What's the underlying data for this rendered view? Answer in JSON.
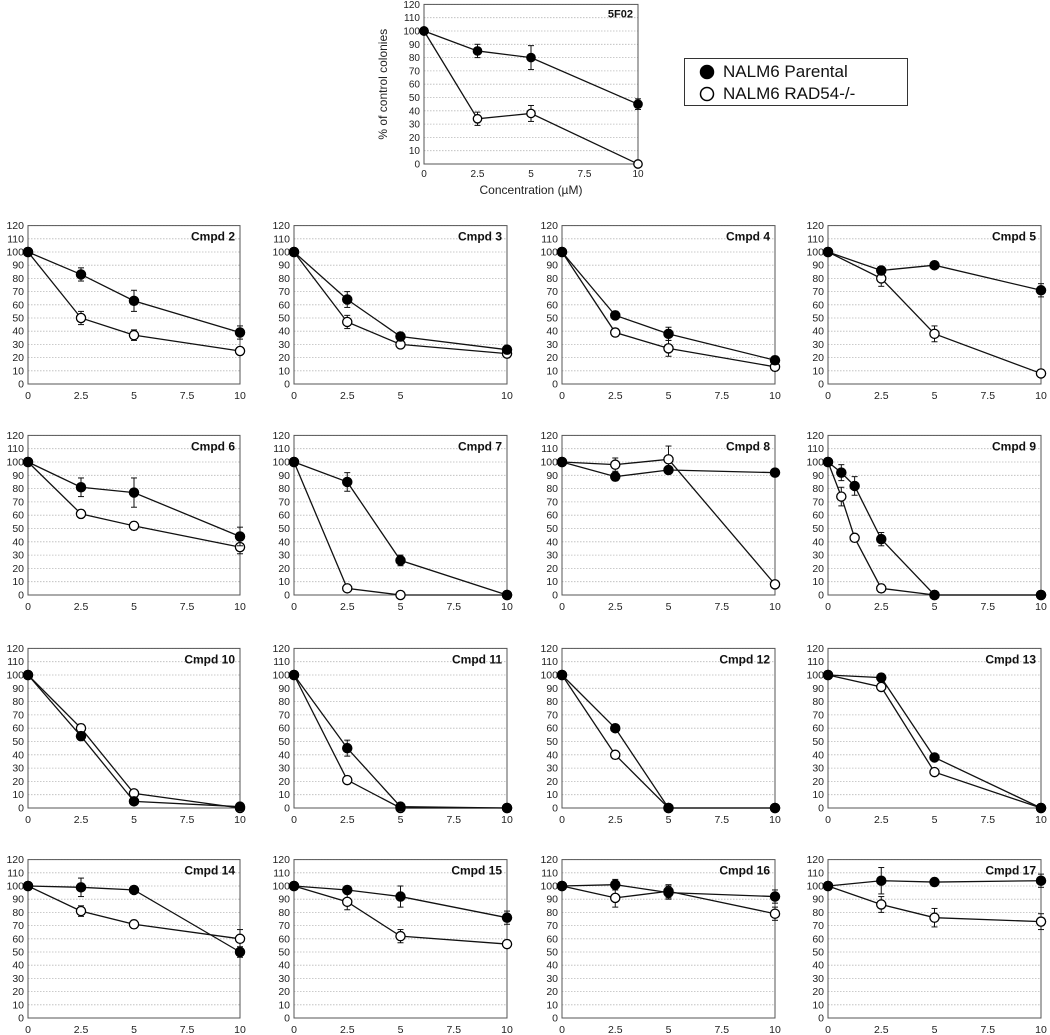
{
  "legend": {
    "parental": "NALM6 Parental",
    "rad54": "NALM6 RAD54-/-"
  },
  "chart_data": [
    {
      "type": "line",
      "title": "5F02",
      "xlabel": "Concentration (µM)",
      "ylabel": "% of control colonies",
      "xlim": [
        0,
        10
      ],
      "ylim": [
        0,
        120
      ],
      "xticks": [
        0,
        2.5,
        5,
        7.5,
        10
      ],
      "xticklabels": [
        "0",
        "2.5",
        "5",
        "7.5",
        "10"
      ],
      "yticks": [
        0,
        10,
        20,
        30,
        40,
        50,
        60,
        70,
        80,
        90,
        100,
        110,
        120
      ],
      "grid": true,
      "series": [
        {
          "name": "NALM6 Parental",
          "x": [
            0,
            2.5,
            5,
            10
          ],
          "y": [
            100,
            85,
            80,
            45
          ],
          "err": [
            0,
            5,
            9,
            4
          ]
        },
        {
          "name": "NALM6 RAD54-/-",
          "x": [
            0,
            2.5,
            5,
            10
          ],
          "y": [
            100,
            34,
            38,
            0
          ],
          "err": [
            0,
            5,
            6,
            0
          ]
        }
      ]
    },
    {
      "type": "line",
      "title": "Cmpd 2",
      "xticklabels": [
        "0",
        "2.5",
        "5",
        "7.5",
        "10"
      ],
      "series": [
        {
          "name": "NALM6 Parental",
          "x": [
            0,
            2.5,
            5,
            10
          ],
          "y": [
            100,
            83,
            63,
            39
          ],
          "err": [
            0,
            5,
            8,
            5
          ]
        },
        {
          "name": "NALM6 RAD54-/-",
          "x": [
            0,
            2.5,
            5,
            10
          ],
          "y": [
            100,
            50,
            37,
            25
          ],
          "err": [
            0,
            5,
            4,
            3
          ]
        }
      ]
    },
    {
      "type": "line",
      "title": "Cmpd 3",
      "xticklabels": [
        "0",
        "2.5",
        "5",
        "",
        "10"
      ],
      "series": [
        {
          "name": "NALM6 Parental",
          "x": [
            0,
            2.5,
            5,
            10
          ],
          "y": [
            100,
            64,
            36,
            26
          ],
          "err": [
            0,
            6,
            3,
            2
          ]
        },
        {
          "name": "NALM6 RAD54-/-",
          "x": [
            0,
            2.5,
            5,
            10
          ],
          "y": [
            100,
            47,
            30,
            23
          ],
          "err": [
            0,
            5,
            3,
            2
          ]
        }
      ]
    },
    {
      "type": "line",
      "title": "Cmpd 4",
      "xticklabels": [
        "0",
        "2.5",
        "5",
        "7.5",
        "10"
      ],
      "series": [
        {
          "name": "NALM6 Parental",
          "x": [
            0,
            2.5,
            5,
            10
          ],
          "y": [
            100,
            52,
            38,
            18
          ],
          "err": [
            0,
            3,
            5,
            3
          ]
        },
        {
          "name": "NALM6 RAD54-/-",
          "x": [
            0,
            2.5,
            5,
            10
          ],
          "y": [
            100,
            39,
            27,
            13
          ],
          "err": [
            0,
            3,
            6,
            3
          ]
        }
      ]
    },
    {
      "type": "line",
      "title": "Cmpd 5",
      "xticklabels": [
        "0",
        "2.5",
        "5",
        "7.5",
        "10"
      ],
      "series": [
        {
          "name": "NALM6 Parental",
          "x": [
            0,
            2.5,
            5,
            10
          ],
          "y": [
            100,
            86,
            90,
            71
          ],
          "err": [
            0,
            3,
            2,
            5
          ]
        },
        {
          "name": "NALM6 RAD54-/-",
          "x": [
            0,
            2.5,
            5,
            10
          ],
          "y": [
            100,
            80,
            38,
            8
          ],
          "err": [
            0,
            6,
            6,
            3
          ]
        }
      ]
    },
    {
      "type": "line",
      "title": "Cmpd 6",
      "xticklabels": [
        "0",
        "2.5",
        "5",
        "7.5",
        "10"
      ],
      "series": [
        {
          "name": "NALM6 Parental",
          "x": [
            0,
            2.5,
            5,
            10
          ],
          "y": [
            100,
            81,
            77,
            44
          ],
          "err": [
            0,
            7,
            11,
            7
          ]
        },
        {
          "name": "NALM6 RAD54-/-",
          "x": [
            0,
            2.5,
            5,
            10
          ],
          "y": [
            100,
            61,
            52,
            36
          ],
          "err": [
            0,
            3,
            3,
            5
          ]
        }
      ]
    },
    {
      "type": "line",
      "title": "Cmpd 7",
      "xticklabels": [
        "0",
        "2.5",
        "5",
        "7.5",
        "10"
      ],
      "series": [
        {
          "name": "NALM6 Parental",
          "x": [
            0,
            2.5,
            5,
            10
          ],
          "y": [
            100,
            85,
            26,
            0
          ],
          "err": [
            0,
            7,
            4,
            0
          ]
        },
        {
          "name": "NALM6 RAD54-/-",
          "x": [
            0,
            2.5,
            5,
            10
          ],
          "y": [
            100,
            5,
            0,
            0
          ],
          "err": [
            0,
            0,
            0,
            0
          ]
        }
      ]
    },
    {
      "type": "line",
      "title": "Cmpd 8",
      "xticklabels": [
        "0",
        "2.5",
        "5",
        "7.5",
        "10"
      ],
      "series": [
        {
          "name": "NALM6 Parental",
          "x": [
            0,
            2.5,
            5,
            10
          ],
          "y": [
            100,
            89,
            94,
            92
          ],
          "err": [
            0,
            3,
            3,
            2
          ]
        },
        {
          "name": "NALM6 RAD54-/-",
          "x": [
            0,
            2.5,
            5,
            10
          ],
          "y": [
            100,
            98,
            102,
            8
          ],
          "err": [
            0,
            5,
            10,
            2
          ]
        }
      ]
    },
    {
      "type": "line",
      "title": "Cmpd 9",
      "xticklabels": [
        "0",
        "2.5",
        "5",
        "7.5",
        "10"
      ],
      "series": [
        {
          "name": "NALM6 Parental",
          "x": [
            0,
            0.625,
            1.25,
            2.5,
            5,
            10
          ],
          "y": [
            100,
            92,
            82,
            42,
            0,
            0
          ],
          "err": [
            0,
            6,
            7,
            5,
            0,
            0
          ]
        },
        {
          "name": "NALM6 RAD54-/-",
          "x": [
            0,
            0.625,
            1.25,
            2.5,
            5,
            10
          ],
          "y": [
            100,
            74,
            43,
            5,
            0,
            0
          ],
          "err": [
            0,
            7,
            3,
            3,
            0,
            0
          ]
        }
      ]
    },
    {
      "type": "line",
      "title": "Cmpd 10",
      "xticklabels": [
        "0",
        "2.5",
        "5",
        "7.5",
        "10"
      ],
      "series": [
        {
          "name": "NALM6 Parental",
          "x": [
            0,
            2.5,
            5,
            10
          ],
          "y": [
            100,
            54,
            5,
            1
          ],
          "err": [
            0,
            3,
            1,
            0
          ]
        },
        {
          "name": "NALM6 RAD54-/-",
          "x": [
            0,
            2.5,
            5,
            10
          ],
          "y": [
            100,
            60,
            11,
            0
          ],
          "err": [
            0,
            3,
            1,
            0
          ]
        }
      ]
    },
    {
      "type": "line",
      "title": "Cmpd 11",
      "xticklabels": [
        "0",
        "2.5",
        "5",
        "7.5",
        "10"
      ],
      "series": [
        {
          "name": "NALM6 Parental",
          "x": [
            0,
            2.5,
            5,
            10
          ],
          "y": [
            100,
            45,
            1,
            0
          ],
          "err": [
            0,
            6,
            0,
            0
          ]
        },
        {
          "name": "NALM6 RAD54-/-",
          "x": [
            0,
            2.5,
            5,
            10
          ],
          "y": [
            100,
            21,
            0,
            0
          ],
          "err": [
            0,
            3,
            0,
            0
          ]
        }
      ]
    },
    {
      "type": "line",
      "title": "Cmpd 12",
      "xticklabels": [
        "0",
        "2.5",
        "5",
        "7.5",
        "10"
      ],
      "series": [
        {
          "name": "NALM6 Parental",
          "x": [
            0,
            2.5,
            5,
            10
          ],
          "y": [
            100,
            60,
            0,
            0
          ],
          "err": [
            0,
            2,
            0,
            0
          ]
        },
        {
          "name": "NALM6 RAD54-/-",
          "x": [
            0,
            2.5,
            5,
            10
          ],
          "y": [
            100,
            40,
            0,
            0
          ],
          "err": [
            0,
            3,
            0,
            0
          ]
        }
      ]
    },
    {
      "type": "line",
      "title": "Cmpd 13",
      "xticklabels": [
        "0",
        "2.5",
        "5",
        "7.5",
        "10"
      ],
      "series": [
        {
          "name": "NALM6 Parental",
          "x": [
            0,
            2.5,
            5,
            10
          ],
          "y": [
            100,
            98,
            38,
            0
          ],
          "err": [
            0,
            3,
            2,
            0
          ]
        },
        {
          "name": "NALM6 RAD54-/-",
          "x": [
            0,
            2.5,
            5,
            10
          ],
          "y": [
            100,
            91,
            27,
            0
          ],
          "err": [
            0,
            3,
            2,
            0
          ]
        }
      ]
    },
    {
      "type": "line",
      "title": "Cmpd 14",
      "xticklabels": [
        "0",
        "2.5",
        "5",
        "7.5",
        "10"
      ],
      "series": [
        {
          "name": "NALM6 Parental",
          "x": [
            0,
            2.5,
            5,
            10
          ],
          "y": [
            100,
            99,
            97,
            50
          ],
          "err": [
            0,
            7,
            2,
            4
          ]
        },
        {
          "name": "NALM6 RAD54-/-",
          "x": [
            0,
            2.5,
            5,
            10
          ],
          "y": [
            100,
            81,
            71,
            60
          ],
          "err": [
            0,
            4,
            3,
            7
          ]
        }
      ]
    },
    {
      "type": "line",
      "title": "Cmpd 15",
      "xticklabels": [
        "0",
        "2.5",
        "5",
        "7.5",
        "10"
      ],
      "series": [
        {
          "name": "NALM6 Parental",
          "x": [
            0,
            2.5,
            5,
            10
          ],
          "y": [
            100,
            97,
            92,
            76
          ],
          "err": [
            0,
            3,
            8,
            5
          ]
        },
        {
          "name": "NALM6 RAD54-/-",
          "x": [
            0,
            2.5,
            5,
            10
          ],
          "y": [
            100,
            88,
            62,
            56
          ],
          "err": [
            0,
            6,
            5,
            3
          ]
        }
      ]
    },
    {
      "type": "line",
      "title": "Cmpd 16",
      "xticklabels": [
        "0",
        "2.5",
        "5",
        "7.5",
        "10"
      ],
      "series": [
        {
          "name": "NALM6 Parental",
          "x": [
            0,
            2.5,
            5,
            10
          ],
          "y": [
            100,
            101,
            95,
            92
          ],
          "err": [
            0,
            4,
            5,
            5
          ]
        },
        {
          "name": "NALM6 RAD54-/-",
          "x": [
            0,
            2.5,
            5,
            10
          ],
          "y": [
            100,
            91,
            96,
            79
          ],
          "err": [
            0,
            7,
            5,
            5
          ]
        }
      ]
    },
    {
      "type": "line",
      "title": "Cmpd 17",
      "xticklabels": [
        "0",
        "2.5",
        "5",
        "7.5",
        "10"
      ],
      "series": [
        {
          "name": "NALM6 Parental",
          "x": [
            0,
            2.5,
            5,
            10
          ],
          "y": [
            100,
            104,
            103,
            104
          ],
          "err": [
            0,
            10,
            3,
            5
          ]
        },
        {
          "name": "NALM6 RAD54-/-",
          "x": [
            0,
            2.5,
            5,
            10
          ],
          "y": [
            100,
            86,
            76,
            73
          ],
          "err": [
            0,
            6,
            7,
            6
          ]
        }
      ]
    }
  ]
}
